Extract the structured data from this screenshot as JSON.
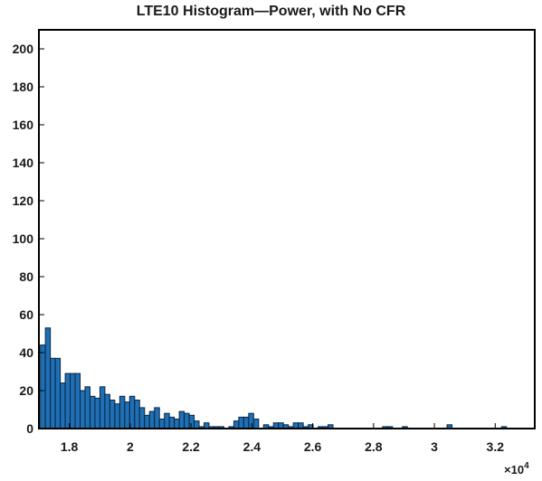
{
  "chart_data": {
    "type": "bar",
    "title": "LTE10 Histogram—Power, with No CFR",
    "xlabel": "",
    "ylabel": "",
    "x_multiplier_label": "×10",
    "x_multiplier_exponent": "4",
    "xlim": [
      1.7,
      3.33
    ],
    "ylim": [
      0,
      210
    ],
    "grid": false,
    "x_ticks": [
      1.8,
      2.0,
      2.2,
      2.4,
      2.6,
      2.8,
      3.0,
      3.2
    ],
    "x_tick_labels": [
      "1.8",
      "2",
      "2.2",
      "2.4",
      "2.6",
      "2.8",
      "3",
      "3.2"
    ],
    "y_ticks": [
      0,
      20,
      40,
      60,
      80,
      100,
      120,
      140,
      160,
      180,
      200
    ],
    "y_tick_labels": [
      "0",
      "20",
      "40",
      "60",
      "80",
      "100",
      "120",
      "140",
      "160",
      "180",
      "200"
    ],
    "bar_color": "#1f6fb5",
    "bar_edge_color": "#0a2540",
    "bin_start": 1.705,
    "bin_width": 0.0163,
    "values": [
      44,
      53,
      37,
      37,
      24,
      29,
      29,
      29,
      20,
      22,
      17,
      16,
      22,
      18,
      15,
      13,
      17,
      14,
      17,
      15,
      11,
      7,
      9,
      11,
      5,
      8,
      6,
      5,
      9,
      8,
      7,
      4,
      1,
      3,
      1,
      1,
      1,
      0,
      1,
      4,
      6,
      6,
      8,
      5,
      0,
      2,
      1,
      3,
      3,
      2,
      1,
      3,
      3,
      1,
      2,
      0,
      1,
      1,
      2,
      0,
      0,
      0,
      0,
      0,
      0,
      0,
      0,
      0,
      0,
      1,
      1,
      0,
      0,
      1,
      0,
      0,
      0,
      0,
      0,
      0,
      0,
      0,
      2,
      0,
      0,
      0,
      0,
      0,
      0,
      0,
      0,
      0,
      0,
      1,
      0,
      0,
      0,
      0,
      0,
      0
    ]
  }
}
